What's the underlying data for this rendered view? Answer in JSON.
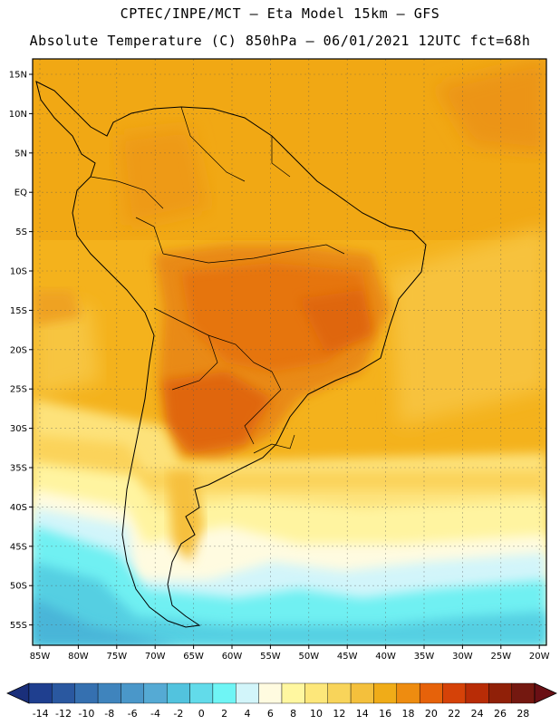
{
  "header": {
    "line1": "CPTEC/INPE/MCT –  Eta Model 15km – GFS",
    "line2": "Absolute Temperature (C) 850hPa – 06/01/2021 12UTC fct=68h"
  },
  "axes": {
    "lat_labels": [
      "15N",
      "10N",
      "5N",
      "EQ",
      "5S",
      "10S",
      "15S",
      "20S",
      "25S",
      "30S",
      "35S",
      "40S",
      "45S",
      "50S",
      "55S"
    ],
    "lon_labels": [
      "85W",
      "80W",
      "75W",
      "70W",
      "65W",
      "60W",
      "55W",
      "50W",
      "45W",
      "40W",
      "35W",
      "30W",
      "25W",
      "20W"
    ]
  },
  "colorbar": {
    "labels": [
      "-14",
      "-12",
      "-10",
      "-8",
      "-6",
      "-4",
      "-2",
      "0",
      "2",
      "4",
      "6",
      "8",
      "10",
      "12",
      "14",
      "16",
      "18",
      "20",
      "22",
      "24",
      "26",
      "28"
    ],
    "colors": [
      "#1f3f8f",
      "#2a58a0",
      "#3570b0",
      "#3f84bd",
      "#4a97c9",
      "#55aad4",
      "#52c3de",
      "#62dbea",
      "#6ff5f5",
      "#d2f5fa",
      "#fffbe0",
      "#fff7a0",
      "#fde77a",
      "#f8d45a",
      "#f4c03c",
      "#f0ac18",
      "#ee8c10",
      "#e6620a",
      "#d54208",
      "#b82c06",
      "#902008",
      "#741810"
    ],
    "under_color": "#1a2f7a",
    "over_color": "#6a0f14"
  }
}
